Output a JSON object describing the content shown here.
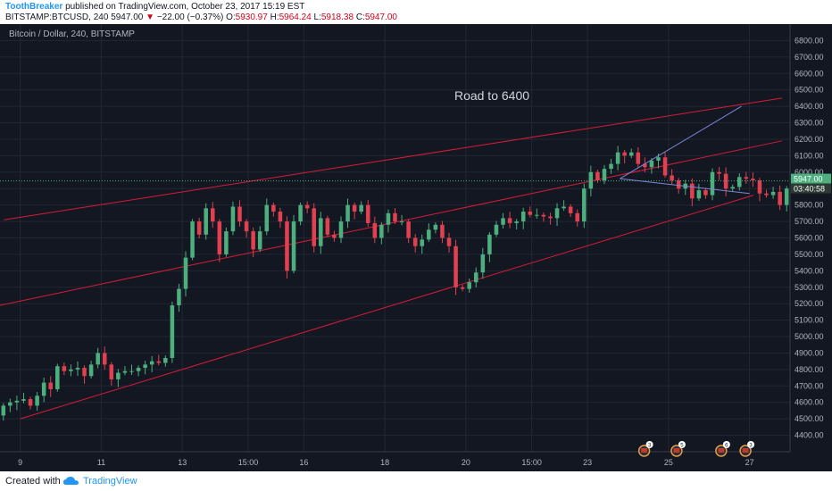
{
  "header": {
    "author": "ToothBreaker",
    "published_text": "published on TradingView.com, October 23, 2017 15:19 EST",
    "symbol": "BITSTAMP:BTCUSD, 240",
    "last": "5947.00",
    "change": "−22.00 (−0.37%)",
    "o_label": "O:",
    "o_value": "5930.97",
    "h_label": "H:",
    "h_value": "5964.24",
    "l_label": "L:",
    "l_value": "5918.38",
    "c_label": "C:",
    "c_value": "5947.00"
  },
  "footer": {
    "created_label": "Created with",
    "brand": "TradingView"
  },
  "colors": {
    "background": "#131722",
    "grid": "#232733",
    "up": "#4caf7d",
    "down": "#e04050",
    "channel": "#d81b36",
    "projection": "#7c87d6",
    "price_tag": "#4caf7d",
    "text": "#b2b5be"
  },
  "chart_data": {
    "type": "candlestick",
    "legend": "Bitcoin / Dollar, 240, BITSTAMP",
    "annotation": "Road to 6400",
    "current_price_tag": "5947.00",
    "countdown_tag": "03:40:58",
    "y_range": [
      4300,
      6900
    ],
    "y_ticks": [
      "4400.00",
      "4500.00",
      "4600.00",
      "4700.00",
      "4800.00",
      "4900.00",
      "5000.00",
      "5100.00",
      "5200.00",
      "5300.00",
      "5400.00",
      "5500.00",
      "5600.00",
      "5700.00",
      "5800.00",
      "5900.00",
      "6000.00",
      "6100.00",
      "6200.00",
      "6300.00",
      "6400.00",
      "6500.00",
      "6600.00",
      "6700.00",
      "6800.00"
    ],
    "x_range": [
      8.5,
      28
    ],
    "x_ticks": [
      {
        "t": 9,
        "label": "9"
      },
      {
        "t": 11,
        "label": "11"
      },
      {
        "t": 13,
        "label": "13"
      },
      {
        "t": 14.625,
        "label": "15:00"
      },
      {
        "t": 16,
        "label": "16"
      },
      {
        "t": 18,
        "label": "18"
      },
      {
        "t": 20,
        "label": "20"
      },
      {
        "t": 21.625,
        "label": "15:00"
      },
      {
        "t": 23,
        "label": "23"
      },
      {
        "t": 25,
        "label": "25"
      },
      {
        "t": 27,
        "label": "27"
      }
    ],
    "events": [
      {
        "t": 24.4,
        "label": "3"
      },
      {
        "t": 25.2,
        "label": "5"
      },
      {
        "t": 26.3,
        "label": "6"
      },
      {
        "t": 26.9,
        "label": "3"
      }
    ],
    "closes": [
      4580,
      4600,
      4610,
      4620,
      4580,
      4640,
      4720,
      4680,
      4820,
      4790,
      4800,
      4810,
      4760,
      4830,
      4900,
      4830,
      4740,
      4780,
      4790,
      4790,
      4810,
      4830,
      4850,
      4840,
      4870,
      5190,
      5290,
      5480,
      5700,
      5620,
      5780,
      5700,
      5500,
      5640,
      5790,
      5700,
      5640,
      5530,
      5640,
      5800,
      5760,
      5700,
      5400,
      5700,
      5800,
      5780,
      5550,
      5720,
      5620,
      5600,
      5700,
      5800,
      5760,
      5800,
      5690,
      5600,
      5680,
      5750,
      5700,
      5700,
      5600,
      5550,
      5590,
      5650,
      5680,
      5600,
      5550,
      5300,
      5290,
      5330,
      5390,
      5500,
      5620,
      5680,
      5720,
      5690,
      5700,
      5760,
      5740,
      5740,
      5730,
      5720,
      5780,
      5790,
      5750,
      5700,
      5900,
      6000,
      5950,
      6020,
      6050,
      6120,
      6100,
      6120,
      6050,
      6030,
      6070,
      6090,
      5980,
      5950,
      5900,
      5930,
      5840,
      5890,
      5860,
      6000,
      5990,
      5900,
      5910,
      5970,
      5960,
      5950,
      5870,
      5860,
      5880,
      5800,
      5900,
      5947
    ],
    "channels": [
      {
        "name": "upper",
        "from": [
          8.6,
          5710
        ],
        "to": [
          27.8,
          6450
        ]
      },
      {
        "name": "middle",
        "from": [
          8.5,
          5190
        ],
        "to": [
          27.8,
          6190
        ]
      },
      {
        "name": "lower",
        "from": [
          9.0,
          4500
        ],
        "to": [
          27.1,
          5860
        ]
      }
    ],
    "projections": [
      {
        "from": [
          23.8,
          5960
        ],
        "to": [
          26.8,
          6400
        ]
      },
      {
        "from": [
          23.8,
          5960
        ],
        "to": [
          27.0,
          5870
        ]
      }
    ]
  }
}
